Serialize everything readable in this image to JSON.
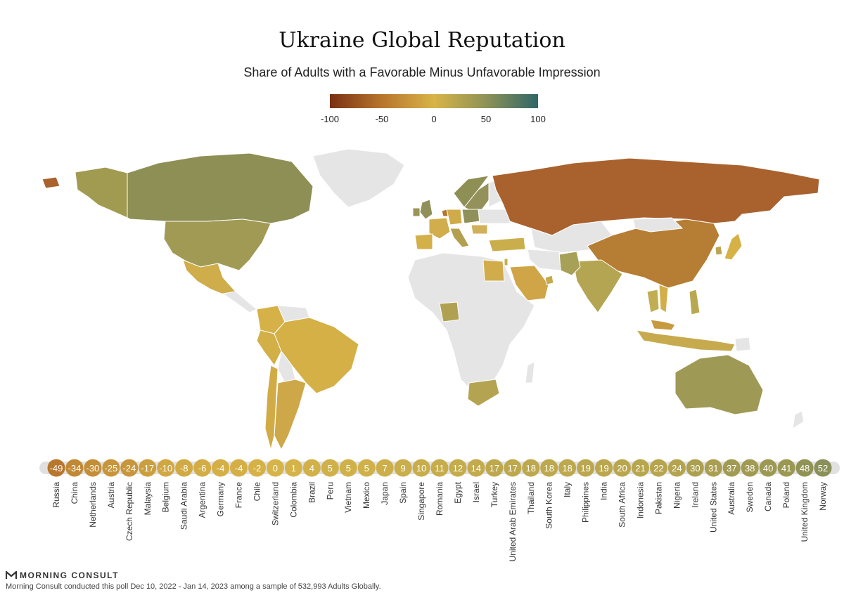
{
  "title": "Ukraine Global Reputation",
  "subtitle": "Share of Adults with a Favorable Minus Unfavorable Impression",
  "legend": {
    "ticks": [
      "-100",
      "-50",
      "0",
      "50",
      "100"
    ],
    "colors": [
      "#7a2f13",
      "#b8752c",
      "#d7b447",
      "#8e9256",
      "#2f6668"
    ]
  },
  "colors": {
    "no_data": "#e5e5e5",
    "border": "#ffffff"
  },
  "chart_data": {
    "type": "bar",
    "categories": [
      "Russia",
      "China",
      "Netherlands",
      "Austria",
      "Czech Republic",
      "Malaysia",
      "Belgium",
      "Saudi Arabia",
      "Argentina",
      "Germany",
      "France",
      "Chile",
      "Switzerland",
      "Colombia",
      "Brazil",
      "Peru",
      "Vietnam",
      "Mexico",
      "Japan",
      "Spain",
      "Singapore",
      "Romania",
      "Egypt",
      "Israel",
      "Turkey",
      "United Arab Emirates",
      "Thailand",
      "South Korea",
      "Italy",
      "Philippines",
      "India",
      "South Africa",
      "Indonesia",
      "Pakistan",
      "Nigeria",
      "Ireland",
      "United States",
      "Australia",
      "Sweden",
      "Canada",
      "Poland",
      "United Kingdom",
      "Norway"
    ],
    "values": [
      -49,
      -34,
      -30,
      -25,
      -24,
      -17,
      -10,
      -8,
      -6,
      -4,
      -4,
      -2,
      0,
      1,
      4,
      5,
      5,
      5,
      7,
      9,
      10,
      11,
      12,
      14,
      17,
      17,
      18,
      18,
      18,
      19,
      19,
      20,
      21,
      22,
      24,
      30,
      31,
      37,
      38,
      40,
      41,
      48,
      52
    ],
    "value_labels": [
      "-49",
      "-34",
      "-30",
      "-25",
      "-24",
      "-17",
      "-10",
      "-8",
      "-6",
      "-4",
      "-4",
      "-2",
      "0",
      "1",
      "4",
      "5",
      "5",
      "5",
      "7",
      "9",
      "10",
      "11",
      "12",
      "14",
      "17",
      "17",
      "18",
      "18",
      "18",
      "19",
      "19",
      "20",
      "21",
      "22",
      "24",
      "30",
      "31",
      "37",
      "38",
      "40",
      "41",
      "48",
      "52"
    ],
    "scale": [
      -100,
      100
    ]
  },
  "footer": {
    "brand": "MORNING CONSULT",
    "note": "Morning Consult conducted this poll Dec 10, 2022 - Jan 14, 2023 among a sample of 532,993 Adults Globally."
  }
}
